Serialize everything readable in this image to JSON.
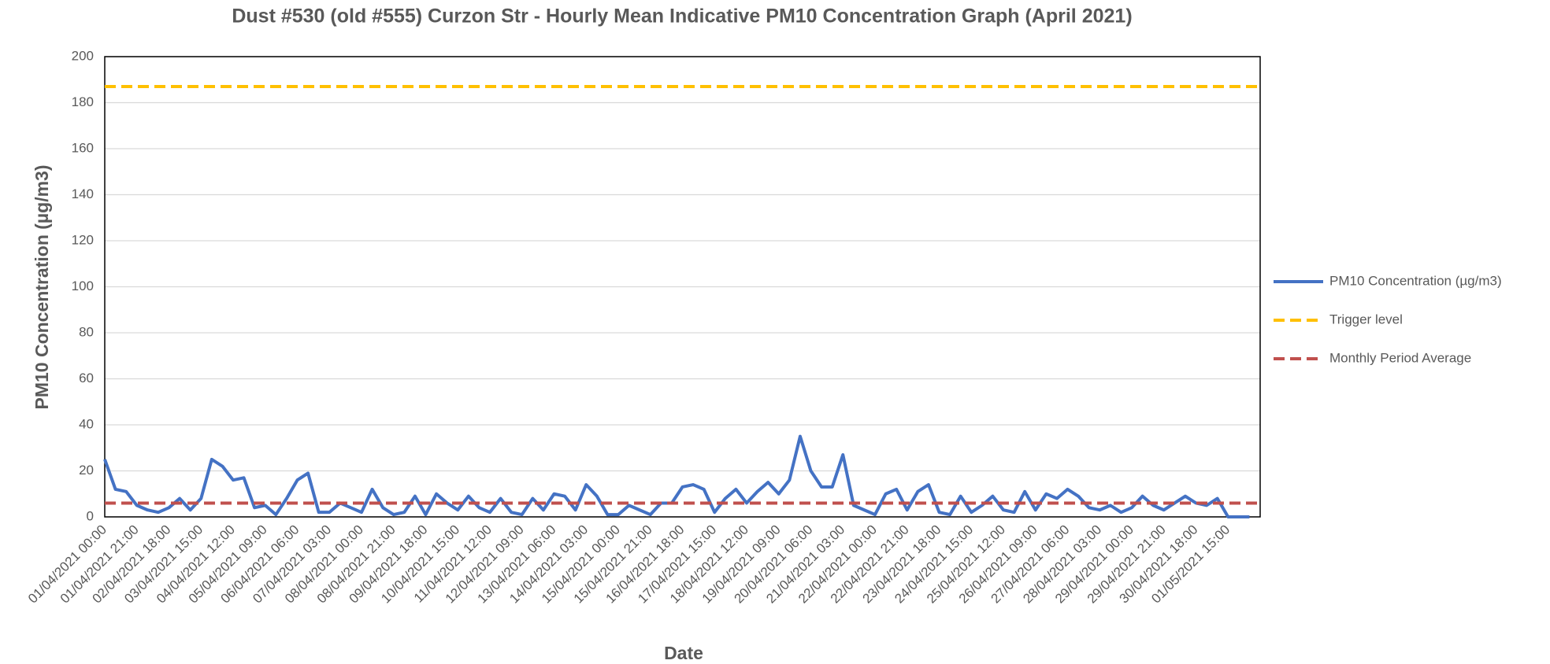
{
  "chart_data": {
    "type": "line",
    "title": "Dust #530 (old #555) Curzon Str - Hourly Mean Indicative PM10 Concentration Graph (April 2021)",
    "x_label": "Date",
    "y_label": "PM10 Concentration (µg/m3)",
    "categories": [
      "01/04/2021 00:00",
      null,
      null,
      "01/04/2021 21:00",
      null,
      null,
      "02/04/2021 18:00",
      null,
      null,
      "03/04/2021 15:00",
      null,
      null,
      "04/04/2021 12:00",
      null,
      null,
      "05/04/2021 09:00",
      null,
      null,
      "06/04/2021 06:00",
      null,
      null,
      "07/04/2021 03:00",
      null,
      null,
      "08/04/2021 00:00",
      null,
      null,
      "08/04/2021 21:00",
      null,
      null,
      "09/04/2021 18:00",
      null,
      null,
      "10/04/2021 15:00",
      null,
      null,
      "11/04/2021 12:00",
      null,
      null,
      "12/04/2021 09:00",
      null,
      null,
      "13/04/2021 06:00",
      null,
      null,
      "14/04/2021 03:00",
      null,
      null,
      "15/04/2021 00:00",
      null,
      null,
      "15/04/2021 21:00",
      null,
      null,
      "16/04/2021 18:00",
      null,
      null,
      "17/04/2021 15:00",
      null,
      null,
      "18/04/2021 12:00",
      null,
      null,
      "19/04/2021 09:00",
      null,
      null,
      "20/04/2021 06:00",
      null,
      null,
      "21/04/2021 03:00",
      null,
      null,
      "22/04/2021 00:00",
      null,
      null,
      "22/04/2021 21:00",
      null,
      null,
      "23/04/2021 18:00",
      null,
      null,
      "24/04/2021 15:00",
      null,
      null,
      "25/04/2021 12:00",
      null,
      null,
      "26/04/2021 09:00",
      null,
      null,
      "27/04/2021 06:00",
      null,
      null,
      "28/04/2021 03:00",
      null,
      null,
      "29/04/2021 00:00",
      null,
      null,
      "29/04/2021 21:00",
      null,
      null,
      "30/04/2021 18:00",
      null,
      null,
      "01/05/2021 15:00",
      null,
      null
    ],
    "series": [
      {
        "name": "PM10 Concentration (µg/m3)",
        "color": "#4472c4",
        "style": "solid",
        "values": [
          25,
          12,
          11,
          5,
          3,
          2,
          4,
          8,
          3,
          8,
          25,
          22,
          16,
          17,
          4,
          5,
          1,
          8,
          16,
          19,
          2,
          2,
          6,
          4,
          2,
          12,
          4,
          1,
          2,
          9,
          1,
          10,
          6,
          3,
          9,
          4,
          2,
          8,
          2,
          1,
          8,
          3,
          10,
          9,
          3,
          14,
          9,
          1,
          1,
          5,
          3,
          1,
          6,
          6,
          13,
          14,
          12,
          2,
          8,
          12,
          6,
          11,
          15,
          10,
          16,
          35,
          20,
          13,
          13,
          27,
          5,
          3,
          1,
          10,
          12,
          3,
          11,
          14,
          2,
          1,
          9,
          2,
          5,
          9,
          3,
          2,
          11,
          3,
          10,
          8,
          12,
          9,
          4,
          3,
          5,
          2,
          4,
          9,
          5,
          3,
          6,
          9,
          6,
          5,
          8,
          0,
          0,
          0
        ]
      },
      {
        "name": "Trigger level",
        "color": "#ffc000",
        "style": "dashed",
        "value": 187
      },
      {
        "name": "Monthly Period Average",
        "color": "#c0504d",
        "style": "dashed",
        "value": 6
      }
    ],
    "ylim": [
      0,
      200
    ],
    "yticks": [
      0,
      20,
      40,
      60,
      80,
      100,
      120,
      140,
      160,
      180,
      200
    ],
    "grid": true,
    "legend": "right"
  }
}
